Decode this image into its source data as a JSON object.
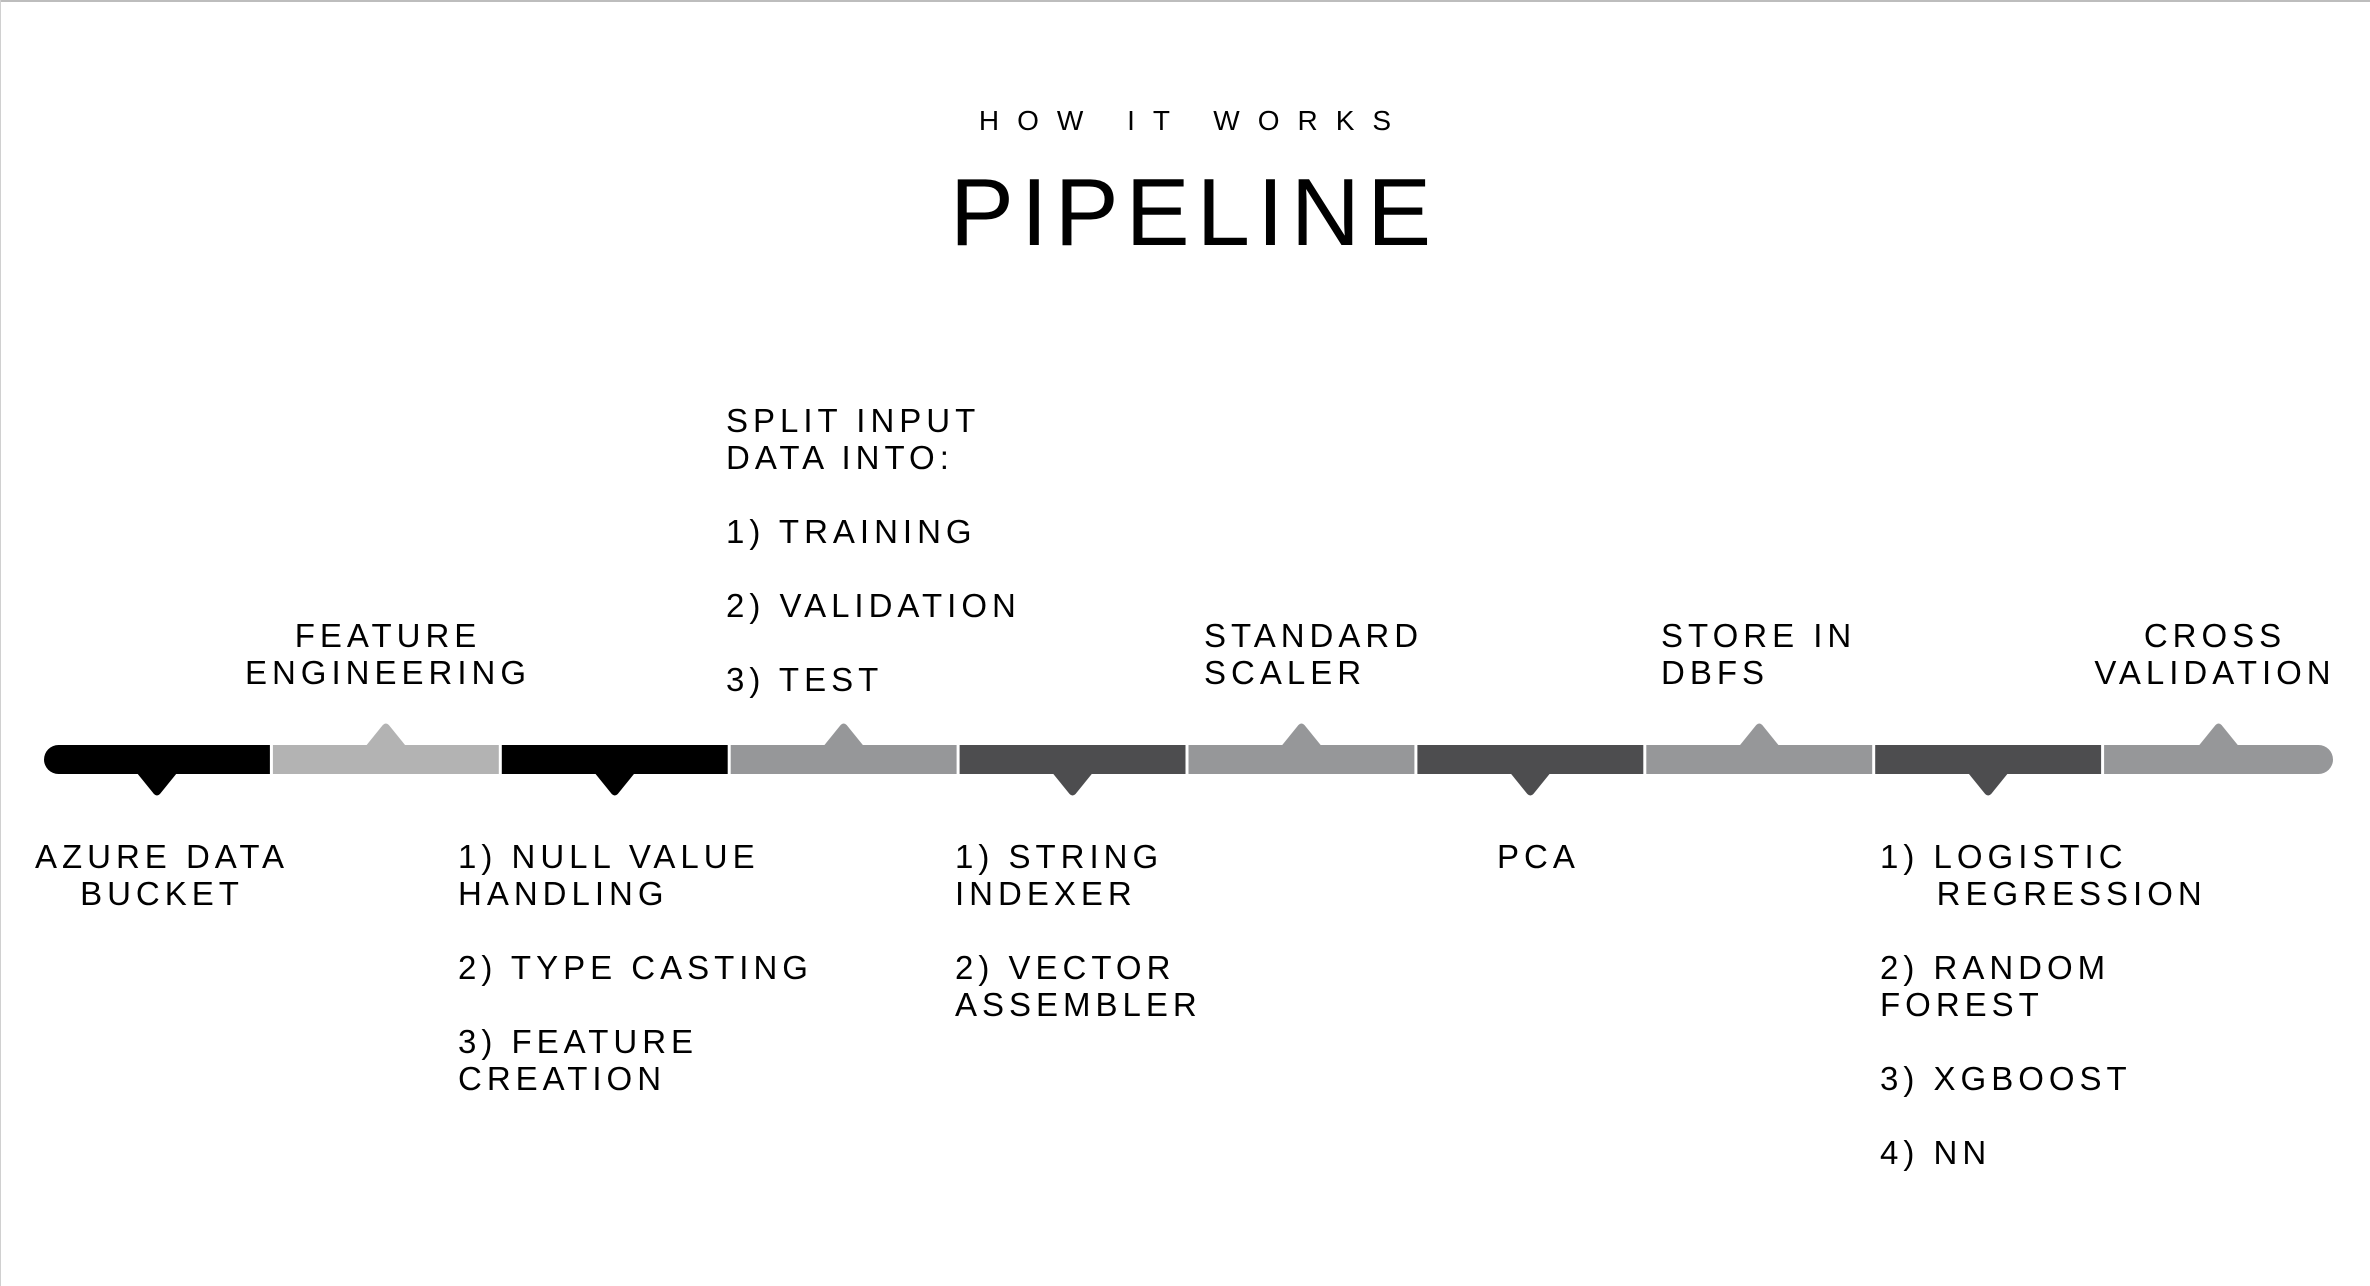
{
  "header": {
    "kicker": "HOW IT WORKS",
    "title": "PIPELINE"
  },
  "colors": {
    "black": "#000000",
    "light_gray": "#b3b3b3",
    "mid_gray": "#969799",
    "dark_gray": "#4d4d4f",
    "background": "#ffffff"
  },
  "segments": [
    {
      "name": "azure-data-bucket",
      "color": "#000000",
      "marker": "down"
    },
    {
      "name": "feature-engineering",
      "color": "#b3b3b3",
      "marker": "up"
    },
    {
      "name": "null-handling",
      "color": "#000000",
      "marker": "down"
    },
    {
      "name": "split-data",
      "color": "#969799",
      "marker": "up"
    },
    {
      "name": "string-indexer",
      "color": "#4d4d4f",
      "marker": "down"
    },
    {
      "name": "standard-scaler",
      "color": "#969799",
      "marker": "up"
    },
    {
      "name": "pca",
      "color": "#4d4d4f",
      "marker": "down"
    },
    {
      "name": "store-in-dbfs",
      "color": "#969799",
      "marker": "up"
    },
    {
      "name": "models",
      "color": "#4d4d4f",
      "marker": "down"
    },
    {
      "name": "cross-validation",
      "color": "#969799",
      "marker": "up"
    }
  ],
  "labels": {
    "azure": [
      "AZURE DATA",
      "BUCKET"
    ],
    "feature_engineering": [
      "FEATURE",
      "ENGINEERING"
    ],
    "null_handling": [
      "1) NULL VALUE\nHANDLING",
      "2) TYPE CASTING",
      "3) FEATURE\nCREATION"
    ],
    "split": [
      "SPLIT INPUT\nDATA INTO:",
      "1) TRAINING",
      "2) VALIDATION",
      "3) TEST"
    ],
    "string_indexer": [
      "1) STRING\nINDEXER",
      "2) VECTOR\nASSEMBLER"
    ],
    "standard_scaler": [
      "STANDARD\nSCALER"
    ],
    "pca": [
      "PCA"
    ],
    "store": [
      "STORE IN\nDBFS"
    ],
    "models": [
      "1) LOGISTIC\n    REGRESSION",
      "2) RANDOM\nFOREST",
      "3) XGBOOST",
      "4) NN"
    ],
    "cross_validation": [
      "CROSS",
      "VALIDATION"
    ]
  }
}
